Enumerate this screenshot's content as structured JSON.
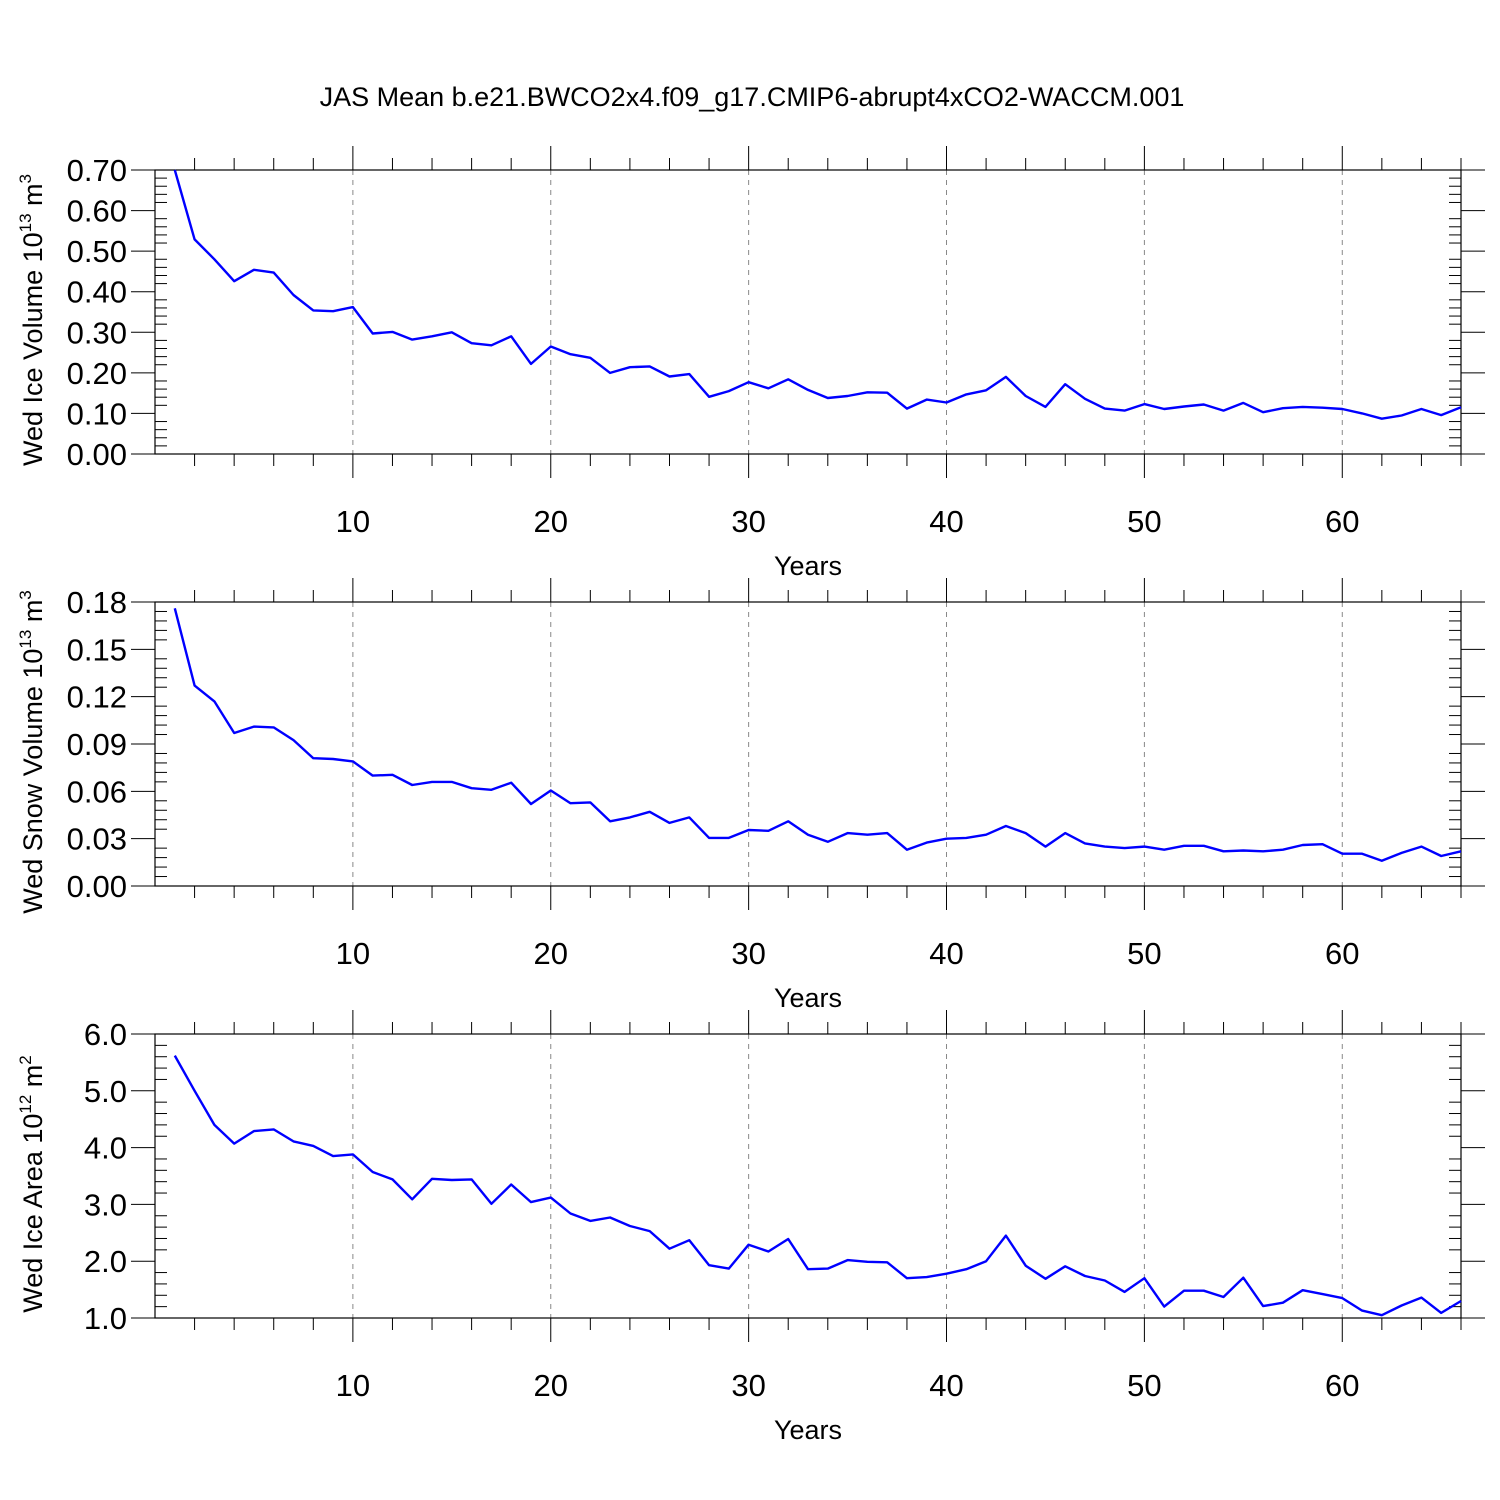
{
  "title": "JAS Mean b.e21.BWCO2x4.f09_g17.CMIP6-abrupt4xCO2-WACCM.001",
  "colors": {
    "series": "#0000ff",
    "grid": "#888888",
    "axis": "#000000"
  },
  "chart_data": [
    {
      "type": "line",
      "ylabel": {
        "main": "Wed Ice Volume 10",
        "exp": "13",
        "unit": " m",
        "unit_exp": "3"
      },
      "xlabel": "Years",
      "xlim": [
        1,
        66
      ],
      "ylim": [
        0,
        0.7
      ],
      "yticks": [
        0.0,
        0.1,
        0.2,
        0.3,
        0.4,
        0.5,
        0.6,
        0.7
      ],
      "yticklabels": [
        "0.00",
        "0.10",
        "0.20",
        "0.30",
        "0.40",
        "0.50",
        "0.60",
        "0.70"
      ],
      "xticks": [
        10,
        20,
        30,
        40,
        50,
        60
      ],
      "xticklabels": [
        "10",
        "20",
        "30",
        "40",
        "50",
        "60"
      ],
      "grid": "x-dashed",
      "series": [
        {
          "x": [
            1,
            2,
            3,
            4,
            5,
            6,
            7,
            8,
            9,
            10,
            11,
            12,
            13,
            14,
            15,
            16,
            17,
            18,
            19,
            20,
            21,
            22,
            23,
            24,
            25,
            26,
            27,
            28,
            29,
            30,
            31,
            32,
            33,
            34,
            35,
            36,
            37,
            38,
            39,
            40,
            41,
            42,
            43,
            44,
            45,
            46,
            47,
            48,
            49,
            50,
            51,
            52,
            53,
            54,
            55,
            56,
            57,
            58,
            59,
            60,
            61,
            62,
            63,
            64,
            65,
            66
          ],
          "values": [
            0.7,
            0.529,
            0.48,
            0.426,
            0.454,
            0.447,
            0.392,
            0.354,
            0.352,
            0.362,
            0.297,
            0.301,
            0.282,
            0.29,
            0.3,
            0.273,
            0.268,
            0.29,
            0.222,
            0.265,
            0.246,
            0.237,
            0.2,
            0.214,
            0.216,
            0.191,
            0.197,
            0.141,
            0.155,
            0.177,
            0.162,
            0.184,
            0.158,
            0.138,
            0.143,
            0.152,
            0.151,
            0.112,
            0.134,
            0.127,
            0.147,
            0.157,
            0.19,
            0.143,
            0.116,
            0.172,
            0.136,
            0.112,
            0.107,
            0.123,
            0.111,
            0.117,
            0.122,
            0.107,
            0.126,
            0.103,
            0.113,
            0.116,
            0.114,
            0.111,
            0.1,
            0.087,
            0.095,
            0.111,
            0.096,
            0.115
          ]
        }
      ]
    },
    {
      "type": "line",
      "ylabel": {
        "main": "Wed Snow Volume 10",
        "exp": "13",
        "unit": " m",
        "unit_exp": "3"
      },
      "xlabel": "Years",
      "xlim": [
        1,
        66
      ],
      "ylim": [
        0,
        0.18
      ],
      "yticks": [
        0.0,
        0.03,
        0.06,
        0.09,
        0.12,
        0.15,
        0.18
      ],
      "yticklabels": [
        "0.00",
        "0.03",
        "0.06",
        "0.09",
        "0.12",
        "0.15",
        "0.18"
      ],
      "xticks": [
        10,
        20,
        30,
        40,
        50,
        60
      ],
      "xticklabels": [
        "10",
        "20",
        "30",
        "40",
        "50",
        "60"
      ],
      "grid": "x-dashed",
      "series": [
        {
          "x": [
            1,
            2,
            3,
            4,
            5,
            6,
            7,
            8,
            9,
            10,
            11,
            12,
            13,
            14,
            15,
            16,
            17,
            18,
            19,
            20,
            21,
            22,
            23,
            24,
            25,
            26,
            27,
            28,
            29,
            30,
            31,
            32,
            33,
            34,
            35,
            36,
            37,
            38,
            39,
            40,
            41,
            42,
            43,
            44,
            45,
            46,
            47,
            48,
            49,
            50,
            51,
            52,
            53,
            54,
            55,
            56,
            57,
            58,
            59,
            60,
            61,
            62,
            63,
            64,
            65,
            66
          ],
          "values": [
            0.176,
            0.127,
            0.117,
            0.097,
            0.101,
            0.1005,
            0.0925,
            0.081,
            0.0805,
            0.079,
            0.07,
            0.0705,
            0.064,
            0.066,
            0.066,
            0.062,
            0.061,
            0.0655,
            0.052,
            0.0605,
            0.0525,
            0.053,
            0.041,
            0.0435,
            0.047,
            0.04,
            0.0435,
            0.0305,
            0.0305,
            0.0355,
            0.035,
            0.041,
            0.0325,
            0.028,
            0.0335,
            0.0325,
            0.0335,
            0.023,
            0.0275,
            0.03,
            0.0305,
            0.0325,
            0.038,
            0.0335,
            0.025,
            0.0335,
            0.027,
            0.025,
            0.024,
            0.025,
            0.023,
            0.0255,
            0.0255,
            0.022,
            0.0225,
            0.022,
            0.023,
            0.026,
            0.0265,
            0.0205,
            0.0205,
            0.016,
            0.021,
            0.025,
            0.019,
            0.022
          ]
        }
      ]
    },
    {
      "type": "line",
      "ylabel": {
        "main": "Wed Ice Area 10",
        "exp": "12",
        "unit": " m",
        "unit_exp": "2"
      },
      "xlabel": "Years",
      "xlim": [
        1,
        66
      ],
      "ylim": [
        1.0,
        6.0
      ],
      "yticks": [
        1.0,
        2.0,
        3.0,
        4.0,
        5.0,
        6.0
      ],
      "yticklabels": [
        "1.0",
        "2.0",
        "3.0",
        "4.0",
        "5.0",
        "6.0"
      ],
      "xticks": [
        10,
        20,
        30,
        40,
        50,
        60
      ],
      "xticklabels": [
        "10",
        "20",
        "30",
        "40",
        "50",
        "60"
      ],
      "grid": "x-dashed",
      "series": [
        {
          "x": [
            1,
            2,
            3,
            4,
            5,
            6,
            7,
            8,
            9,
            10,
            11,
            12,
            13,
            14,
            15,
            16,
            17,
            18,
            19,
            20,
            21,
            22,
            23,
            24,
            25,
            26,
            27,
            28,
            29,
            30,
            31,
            32,
            33,
            34,
            35,
            36,
            37,
            38,
            39,
            40,
            41,
            42,
            43,
            44,
            45,
            46,
            47,
            48,
            49,
            50,
            51,
            52,
            53,
            54,
            55,
            56,
            57,
            58,
            59,
            60,
            61,
            62,
            63,
            64,
            65,
            66
          ],
          "values": [
            5.62,
            5.0,
            4.4,
            4.07,
            4.29,
            4.32,
            4.11,
            4.03,
            3.85,
            3.88,
            3.57,
            3.44,
            3.09,
            3.45,
            3.43,
            3.44,
            3.01,
            3.35,
            3.04,
            3.12,
            2.84,
            2.71,
            2.77,
            2.62,
            2.53,
            2.22,
            2.37,
            1.93,
            1.87,
            2.29,
            2.17,
            2.39,
            1.86,
            1.87,
            2.02,
            1.99,
            1.98,
            1.7,
            1.72,
            1.78,
            1.86,
            2.0,
            2.45,
            1.92,
            1.69,
            1.91,
            1.74,
            1.66,
            1.46,
            1.7,
            1.2,
            1.48,
            1.48,
            1.37,
            1.71,
            1.21,
            1.27,
            1.49,
            1.42,
            1.35,
            1.13,
            1.05,
            1.22,
            1.36,
            1.09,
            1.3
          ]
        }
      ]
    }
  ]
}
